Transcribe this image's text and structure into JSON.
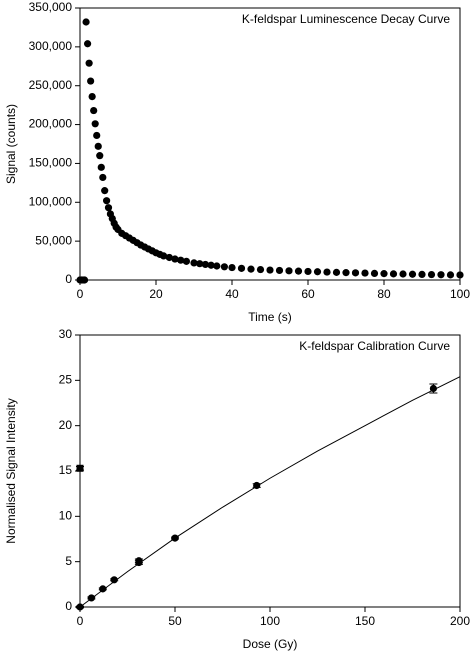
{
  "chart_data": [
    {
      "type": "scatter",
      "title": "K-feldspar Luminescence Decay Curve",
      "x_label": "Time (s)",
      "y_label": "Signal (counts)",
      "xlim": [
        0,
        100
      ],
      "ylim": [
        0,
        350000
      ],
      "xticks": [
        0,
        20,
        40,
        60,
        80,
        100
      ],
      "yticks": [
        0,
        {
          "value": 50000,
          "label": "50,000"
        },
        {
          "value": 100000,
          "label": "100,000"
        },
        {
          "value": 150000,
          "label": "150,000"
        },
        {
          "value": 200000,
          "label": "200,000"
        },
        {
          "value": 250000,
          "label": "250,000"
        },
        {
          "value": 300000,
          "label": "300,000"
        },
        {
          "value": 350000,
          "label": "350,000"
        }
      ],
      "series": [
        {
          "color": "#000000",
          "marker": "circle",
          "x": [
            0,
            0.4,
            0.8,
            1.2,
            1.6,
            2,
            2.4,
            2.8,
            3.2,
            3.6,
            4,
            4.4,
            4.8,
            5.2,
            5.6,
            6,
            6.5,
            7,
            7.5,
            8,
            8.5,
            9,
            9.5,
            10,
            11,
            12,
            13,
            14,
            15,
            16,
            17,
            18,
            19,
            20,
            21,
            22,
            23.5,
            25,
            26.5,
            28,
            30,
            31.5,
            33,
            34.5,
            36,
            38,
            40,
            42.5,
            45,
            47.5,
            50,
            52.5,
            55,
            57.5,
            60,
            62.5,
            65,
            67.5,
            70,
            72.5,
            75,
            77.5,
            80,
            82.5,
            85,
            87.5,
            90,
            92.5,
            95,
            97.5,
            100
          ],
          "values": [
            0,
            0,
            0,
            0,
            332000,
            304000,
            279000,
            256000,
            236000,
            218000,
            201000,
            186000,
            172000,
            160000,
            145000,
            132000,
            115000,
            102000,
            93000,
            85000,
            79000,
            73000,
            68000,
            65000,
            60000,
            57000,
            54000,
            51000,
            48000,
            45000,
            42500,
            40000,
            37500,
            35000,
            33000,
            31000,
            29000,
            27000,
            25500,
            24000,
            22000,
            21000,
            20000,
            19000,
            18000,
            17000,
            16000,
            15000,
            14000,
            13400,
            12800,
            12300,
            11800,
            11400,
            11000,
            10600,
            10200,
            9800,
            9500,
            9200,
            8900,
            8500,
            8200,
            7900,
            7700,
            7400,
            7200,
            7000,
            6800,
            6600,
            6500
          ]
        }
      ]
    },
    {
      "type": "scatter",
      "title": "K-feldspar Calibration Curve",
      "x_label": "Dose (Gy)",
      "y_label": "Normalised Signal Intensity",
      "xlim": [
        0,
        200
      ],
      "ylim": [
        0,
        30
      ],
      "xticks": [
        0,
        50,
        100,
        150,
        200
      ],
      "yticks": [
        0,
        5,
        10,
        15,
        20,
        25,
        30
      ],
      "series": [
        {
          "color": "#000000",
          "marker": "square",
          "x": [
            0
          ],
          "values": [
            15.3
          ],
          "errors": [
            0.2
          ]
        },
        {
          "color": "#000000",
          "marker": "circle",
          "x": [
            0,
            6,
            12,
            18,
            31,
            31,
            50,
            93,
            186
          ],
          "values": [
            0,
            1.0,
            2.0,
            3.0,
            4.9,
            5.1,
            7.6,
            13.4,
            24.1
          ],
          "errors": [
            0.1,
            0.1,
            0.1,
            0.1,
            0.2,
            0.2,
            0.1,
            0.2,
            0.5
          ]
        },
        {
          "color": "#000000",
          "marker": "line",
          "x": [
            0,
            25,
            50,
            75,
            100,
            125,
            150,
            175,
            200
          ],
          "values": [
            0,
            3.9,
            7.6,
            11.0,
            14.2,
            17.2,
            20.0,
            22.8,
            25.4
          ]
        }
      ]
    }
  ]
}
